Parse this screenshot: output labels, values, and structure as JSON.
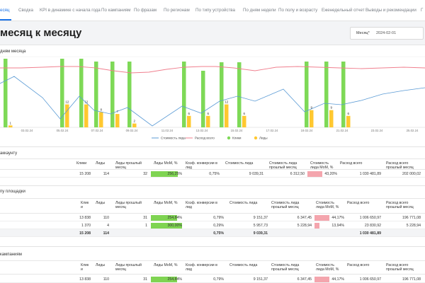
{
  "nav": {
    "tabs": [
      {
        "label": "есяц",
        "active": true
      },
      {
        "label": "Сводка"
      },
      {
        "label": "KPI в динамике с начала года"
      },
      {
        "label": "По кампаниям"
      },
      {
        "label": "По фразам"
      },
      {
        "label": "По регионам"
      },
      {
        "label": "По типу устройства"
      },
      {
        "label": "По дням недели"
      },
      {
        "label": "По полу и возрасту"
      },
      {
        "label": "Еженедельный отчет"
      },
      {
        "label": "Выводы и рекомендации"
      },
      {
        "label": "Г"
      }
    ]
  },
  "header": {
    "title": "месяц к месяцу",
    "month_label": "Месяц*",
    "month_value": "2024-02-01"
  },
  "chart_section": {
    "title": "дням месяца"
  },
  "chart_data": {
    "type": "bar+line",
    "x_ticks": [
      "03.02.24",
      "05.02.24",
      "07.02.24",
      "09.02.24",
      "11.02.24",
      "13.02.24",
      "15.02.24",
      "17.02.24",
      "19.02.24",
      "21.02.24",
      "23.02.24",
      "25.02.24"
    ],
    "series": [
      {
        "name": "Стоимость лида",
        "type": "line",
        "color": "#5b9bd5"
      },
      {
        "name": "Расход всего",
        "type": "line",
        "color": "#f07f8e"
      },
      {
        "name": "Клики",
        "type": "bar",
        "color": "#7ed957"
      },
      {
        "name": "Лиды",
        "type": "bar",
        "color": "#ffc830"
      }
    ],
    "bars": [
      {
        "clicks": 97,
        "leads": 1,
        "label": "1"
      },
      {
        "clicks": 97,
        "leads": 12,
        "label": "12"
      },
      {
        "clicks": 97,
        "leads": 12,
        "label": "12"
      },
      {
        "clicks": 93,
        "leads": 8,
        "label": "8"
      },
      {
        "clicks": 93,
        "leads": 7,
        "label": "7"
      },
      {
        "clicks": 93,
        "leads": 2,
        "label": "2"
      },
      {
        "clicks": 93,
        "leads": 6,
        "label": "6"
      },
      {
        "clicks": 80,
        "leads": 6,
        "label": "6"
      },
      {
        "clicks": 92,
        "leads": 12,
        "label": "12"
      },
      {
        "clicks": 92,
        "leads": 6,
        "label": "6"
      },
      {
        "clicks": 93,
        "leads": 9,
        "label": "9"
      },
      {
        "clicks": 93,
        "leads": 9,
        "label": "9"
      },
      {
        "clicks": 93,
        "leads": 6,
        "label": "6"
      }
    ],
    "legend_position": "bottom"
  },
  "table_account": {
    "title": "аккаунту",
    "headers": [
      "Клики",
      "Лиды",
      "Лиды прошлый месяц",
      "Лиды MoM, %",
      "Коэф. конверсии в лид",
      "Стоимость лида",
      "Стоимость лида прошлый месяц",
      "Стоимость лида MoM, %",
      "Расход всего",
      "Расход всего прошлый месяц"
    ],
    "rows": [
      {
        "cells": [
          "15 208",
          "114",
          "32",
          "256,25%",
          "0,75%",
          "9 039,31",
          "6 312,50",
          "43,20%",
          "1 030 481,89",
          "202 000,02"
        ],
        "mom_leads": 2.5625,
        "mom_cost": 0.432
      }
    ]
  },
  "table_platform": {
    "title": "пу площадки",
    "headers": [
      "Клик и",
      "Лиды",
      "Лиды прошлый месяц",
      "Лиды MoM, %",
      "Коэф. конверсии в лид",
      "Стоимость лида",
      "Стоимость лида прошлый месяц",
      "Стоимость лида MoM, %",
      "Расход всего",
      "Расход всего прошлый месяц"
    ],
    "rows": [
      {
        "cells": [
          "13 838",
          "110",
          "31",
          "254,84%",
          "0,79%",
          "9 151,37",
          "6 347,45",
          "44,17%",
          "1 006 650,97",
          "196 771,08"
        ],
        "mom_leads": 2.5484,
        "mom_cost": 0.4417
      },
      {
        "cells": [
          "1 370",
          "4",
          "1",
          "300,00%",
          "0,29%",
          "5 957,73",
          "5 228,94",
          "13,94%",
          "23 830,92",
          "5 228,94"
        ],
        "mom_leads": 3.0,
        "mom_cost": 0.1394
      }
    ],
    "total": [
      "15 208",
      "114",
      "",
      "",
      "0,75%",
      "9 039,31",
      "",
      "",
      "1 030 481,89",
      ""
    ]
  },
  "table_campaigns": {
    "title": "кампаниям",
    "headers": [
      "Клик и",
      "Лиды",
      "Лиды прошлый месяц",
      "Лиды MoM, %",
      "Коэф. конверсии в лид",
      "Стоимость лида",
      "Стоимость лида прошлый месяц",
      "Стоимость лида MoM, %",
      "Расход всего",
      "Расход всего прошлый месяц"
    ],
    "rows": [
      {
        "cells": [
          "13 838",
          "110",
          "31",
          "254,84%",
          "0,79%",
          "9 151,37",
          "6 347,45",
          "44,17%",
          "1 006 650,97",
          "196 771,08"
        ],
        "mom_leads": 2.5484,
        "mom_cost": 0.4417
      }
    ]
  }
}
